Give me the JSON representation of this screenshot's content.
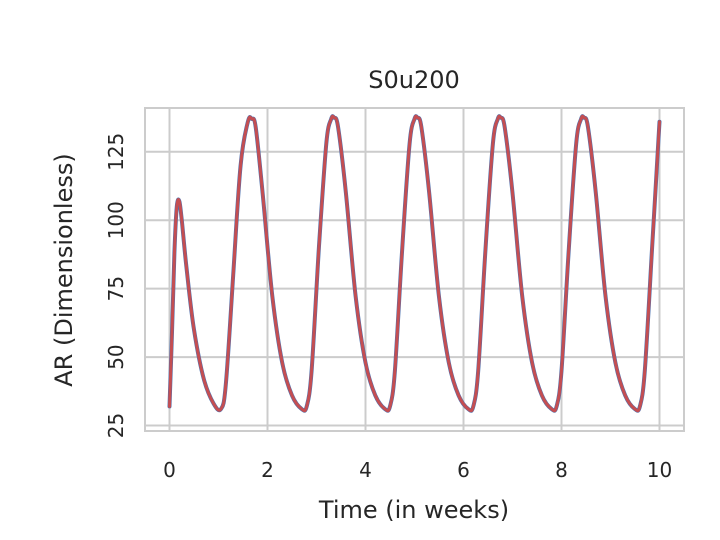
{
  "chart_data": {
    "type": "line",
    "title": "S0u200",
    "xlabel": "Time (in weeks)",
    "ylabel": "AR (Dimensionless)",
    "xlim": [
      -0.5,
      10.5
    ],
    "ylim": [
      23,
      141
    ],
    "xticks": [
      0,
      2,
      4,
      6,
      8,
      10
    ],
    "yticks": [
      25,
      50,
      75,
      100,
      125
    ],
    "grid": true,
    "colors": {
      "series_1": "#4c72b0",
      "series_2": "#c44e52",
      "grid": "#cccccc",
      "frame": "#cccccc"
    },
    "series": [
      {
        "x": [
          0.0,
          0.05,
          0.1,
          0.15,
          0.2,
          0.25,
          0.35,
          0.5,
          0.7,
          0.9,
          1.05,
          1.15,
          1.3,
          1.45,
          1.6,
          1.68,
          1.76,
          1.9,
          2.1,
          2.3,
          2.5,
          2.7,
          2.8,
          2.9,
          3.05,
          3.2,
          3.3,
          3.36,
          3.44,
          3.6,
          3.8,
          4.0,
          4.2,
          4.4,
          4.5,
          4.6,
          4.75,
          4.9,
          5.0,
          5.06,
          5.14,
          5.3,
          5.5,
          5.7,
          5.9,
          6.1,
          6.2,
          6.3,
          6.45,
          6.6,
          6.7,
          6.76,
          6.84,
          7.0,
          7.2,
          7.4,
          7.6,
          7.8,
          7.9,
          8.0,
          8.15,
          8.3,
          8.4,
          8.46,
          8.54,
          8.7,
          8.9,
          9.1,
          9.3,
          9.5,
          9.6,
          9.7,
          9.85,
          10.0
        ],
        "y": [
          32,
          58,
          88,
          105,
          107,
          100,
          82,
          60,
          42,
          33,
          31,
          40,
          80,
          120,
          136,
          137,
          134,
          110,
          72,
          48,
          36,
          31,
          32,
          45,
          90,
          128,
          137,
          137.5,
          134,
          110,
          72,
          48,
          36,
          31,
          32,
          45,
          90,
          128,
          137,
          137.5,
          134,
          110,
          72,
          48,
          36,
          31,
          32,
          45,
          90,
          128,
          137,
          137.5,
          134,
          110,
          72,
          48,
          36,
          31,
          32,
          45,
          90,
          128,
          137,
          137.5,
          134,
          110,
          72,
          48,
          36,
          31,
          32,
          45,
          90,
          136
        ]
      },
      {
        "x": [
          0.0,
          0.05,
          0.1,
          0.15,
          0.2,
          0.25,
          0.35,
          0.5,
          0.7,
          0.9,
          1.05,
          1.15,
          1.3,
          1.45,
          1.6,
          1.68,
          1.76,
          1.9,
          2.1,
          2.3,
          2.5,
          2.7,
          2.8,
          2.9,
          3.05,
          3.2,
          3.3,
          3.36,
          3.44,
          3.6,
          3.8,
          4.0,
          4.2,
          4.4,
          4.5,
          4.6,
          4.75,
          4.9,
          5.0,
          5.06,
          5.14,
          5.3,
          5.5,
          5.7,
          5.9,
          6.1,
          6.2,
          6.3,
          6.45,
          6.6,
          6.7,
          6.76,
          6.84,
          7.0,
          7.2,
          7.4,
          7.6,
          7.8,
          7.9,
          8.0,
          8.15,
          8.3,
          8.4,
          8.46,
          8.54,
          8.7,
          8.9,
          9.1,
          9.3,
          9.5,
          9.6,
          9.7,
          9.85,
          10.0
        ],
        "y": [
          32,
          58,
          88,
          105,
          107,
          100,
          82,
          60,
          42,
          33,
          31,
          40,
          80,
          120,
          136,
          137,
          134,
          110,
          72,
          48,
          36,
          31,
          32,
          45,
          90,
          128,
          137,
          137.5,
          134,
          110,
          72,
          48,
          36,
          31,
          32,
          45,
          90,
          128,
          137,
          137.5,
          134,
          110,
          72,
          48,
          36,
          31,
          32,
          45,
          90,
          128,
          137,
          137.5,
          134,
          110,
          72,
          48,
          36,
          31,
          32,
          45,
          90,
          128,
          137,
          137.5,
          134,
          110,
          72,
          48,
          36,
          31,
          32,
          45,
          90,
          136
        ]
      }
    ]
  }
}
